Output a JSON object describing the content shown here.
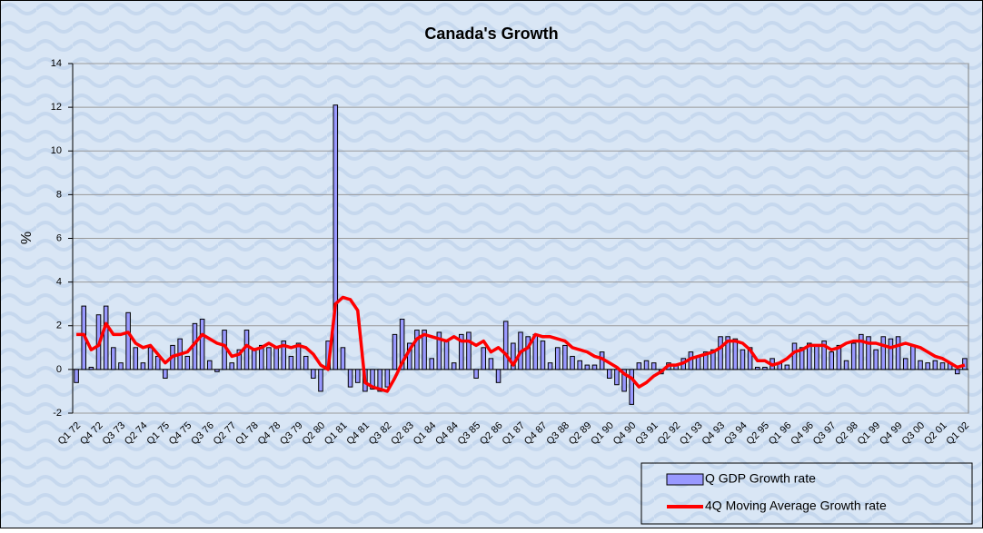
{
  "chart_data": {
    "type": "bar",
    "title": "Canada's Growth",
    "y_label": "%",
    "categories": [
      "Q1 72",
      null,
      null,
      "Q4 72",
      null,
      null,
      "Q3 73",
      null,
      null,
      "Q2 74",
      null,
      null,
      "Q1 75",
      null,
      null,
      "Q4 75",
      null,
      null,
      "Q3 76",
      null,
      null,
      "Q2 77",
      null,
      null,
      "Q1 78",
      null,
      null,
      "Q4 78",
      null,
      null,
      "Q3 79",
      null,
      null,
      "Q2 80",
      null,
      null,
      "Q1 81",
      null,
      null,
      "Q4 81",
      null,
      null,
      "Q3 82",
      null,
      null,
      "Q2 83",
      null,
      null,
      "Q1 84",
      null,
      null,
      "Q4 84",
      null,
      null,
      "Q3 85",
      null,
      null,
      "Q2 86",
      null,
      null,
      "Q1 87",
      null,
      null,
      "Q4 87",
      null,
      null,
      "Q3 88",
      null,
      null,
      "Q2 89",
      null,
      null,
      "Q1 90",
      null,
      null,
      "Q4 90",
      null,
      null,
      "Q3 91",
      null,
      null,
      "Q2 92",
      null,
      null,
      "Q1 93",
      null,
      null,
      "Q4 93",
      null,
      null,
      "Q3 94",
      null,
      null,
      "Q2 95",
      null,
      null,
      "Q1 96",
      null,
      null,
      "Q4 96",
      null,
      null,
      "Q3 97",
      null,
      null,
      "Q2 98",
      null,
      null,
      "Q1 99",
      null,
      null,
      "Q4 99",
      null,
      null,
      "Q3 00",
      null,
      null,
      "Q2 01",
      null,
      null,
      "Q1 02"
    ],
    "series": [
      {
        "name": "Q GDP Growth rate",
        "type": "bar",
        "color": "#9999ff",
        "values": [
          -0.6,
          2.9,
          0.1,
          2.5,
          2.9,
          1.0,
          0.3,
          2.6,
          1.0,
          0.3,
          1.0,
          0.6,
          -0.4,
          1.1,
          1.4,
          0.6,
          2.1,
          2.3,
          0.4,
          -0.1,
          1.8,
          0.3,
          0.9,
          1.8,
          0.9,
          1.1,
          1.0,
          1.0,
          1.3,
          0.6,
          1.2,
          0.6,
          -0.4,
          -1.0,
          1.3,
          12.1,
          1.0,
          -0.8,
          -0.6,
          -1.0,
          -0.9,
          -1.0,
          -0.8,
          1.6,
          2.3,
          1.2,
          1.8,
          1.8,
          0.5,
          1.7,
          1.3,
          0.3,
          1.6,
          1.7,
          -0.4,
          1.0,
          0.5,
          -0.6,
          2.2,
          1.2,
          1.7,
          1.5,
          1.6,
          1.3,
          0.3,
          1.0,
          1.1,
          0.6,
          0.4,
          0.2,
          0.2,
          0.8,
          -0.4,
          -0.7,
          -1.0,
          -1.6,
          0.3,
          0.4,
          0.3,
          -0.2,
          0.3,
          0.2,
          0.5,
          0.8,
          0.6,
          0.8,
          0.9,
          1.5,
          1.5,
          1.4,
          0.9,
          1.0,
          0.1,
          0.1,
          0.5,
          0.3,
          0.2,
          1.2,
          1.0,
          1.2,
          1.1,
          1.3,
          0.8,
          1.1,
          0.4,
          1.2,
          1.6,
          1.5,
          0.9,
          1.5,
          1.4,
          1.5,
          0.5,
          1.1,
          0.4,
          0.3,
          0.4,
          0.3,
          0.3,
          -0.2,
          0.5
        ]
      },
      {
        "name": "4Q Moving Average Growth rate",
        "type": "line",
        "color": "#ff0000",
        "values": [
          1.6,
          1.6,
          0.9,
          1.1,
          2.1,
          1.6,
          1.6,
          1.7,
          1.2,
          1.0,
          1.1,
          0.7,
          0.3,
          0.6,
          0.7,
          0.8,
          1.2,
          1.6,
          1.4,
          1.2,
          1.1,
          0.6,
          0.7,
          1.1,
          0.9,
          1.0,
          1.2,
          1.0,
          1.1,
          1.0,
          1.1,
          1.0,
          0.7,
          0.2,
          0.0,
          3.0,
          3.3,
          3.2,
          2.7,
          -0.6,
          -0.8,
          -0.9,
          -1.0,
          -0.4,
          0.3,
          0.9,
          1.4,
          1.6,
          1.5,
          1.4,
          1.3,
          1.5,
          1.3,
          1.3,
          1.1,
          1.3,
          0.8,
          1.0,
          0.7,
          0.2,
          0.8,
          1.0,
          1.6,
          1.5,
          1.5,
          1.4,
          1.3,
          1.0,
          0.9,
          0.8,
          0.6,
          0.5,
          0.3,
          0.1,
          -0.2,
          -0.4,
          -0.8,
          -0.6,
          -0.3,
          -0.1,
          0.2,
          0.2,
          0.3,
          0.5,
          0.6,
          0.7,
          0.8,
          1.0,
          1.3,
          1.3,
          1.2,
          0.9,
          0.4,
          0.4,
          0.2,
          0.3,
          0.5,
          0.8,
          0.9,
          1.1,
          1.1,
          1.1,
          0.9,
          1.0,
          1.2,
          1.3,
          1.3,
          1.2,
          1.2,
          1.1,
          1.0,
          1.1,
          1.2,
          1.1,
          1.0,
          0.8,
          0.6,
          0.5,
          0.3,
          0.1,
          0.2
        ]
      }
    ],
    "ylim": [
      -2,
      14
    ],
    "yticks": [
      -2,
      0,
      2,
      4,
      6,
      8,
      10,
      12,
      14
    ],
    "grid": true,
    "legend": "bottom-right"
  }
}
